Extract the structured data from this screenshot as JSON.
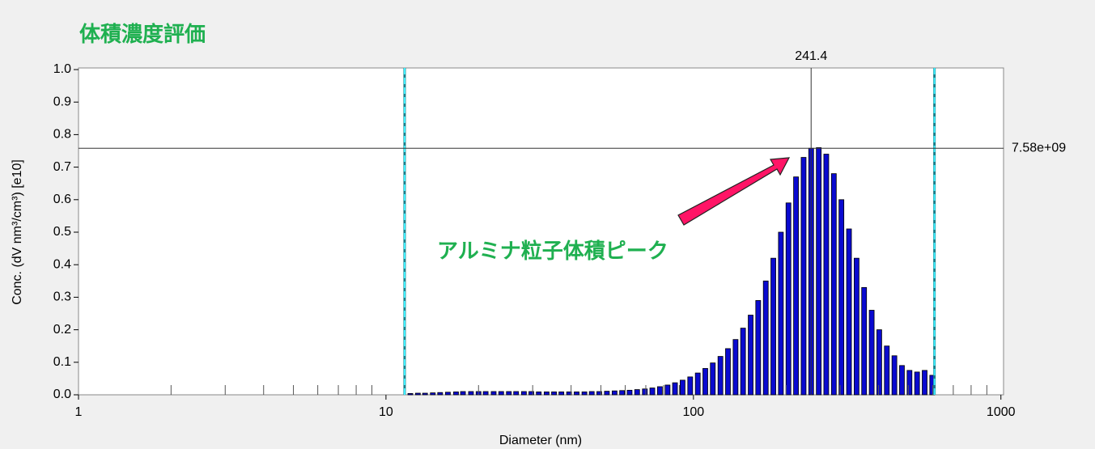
{
  "chart_data": {
    "type": "bar",
    "title": "体積濃度評価",
    "annotation": "アルミナ粒子体積ピーク",
    "xlabel": "Diameter (nm)",
    "ylabel": "Conc. (dV nm³/cm³) [e10]",
    "log_x": true,
    "color": "#0a0ad0",
    "x": [
      12.0,
      12.7,
      13.4,
      14.2,
      15.0,
      15.9,
      16.9,
      17.8,
      18.9,
      20.0,
      21.1,
      22.4,
      23.7,
      25.1,
      26.5,
      28.1,
      29.7,
      31.4,
      33.3,
      35.2,
      37.2,
      39.4,
      41.7,
      44.2,
      46.7,
      49.4,
      52.3,
      55.4,
      58.6,
      62.0,
      65.6,
      69.5,
      73.5,
      77.8,
      82.4,
      87.1,
      92.2,
      97.6,
      103.3,
      109.3,
      115.6,
      122.4,
      129.5,
      137.1,
      145.0,
      153.5,
      162.4,
      171.9,
      181.9,
      192.5,
      203.7,
      215.6,
      228.2,
      241.5,
      255.6,
      270.4,
      286.2,
      302.9,
      320.6,
      339.3,
      359.0,
      380.0,
      402.1,
      425.6,
      450.4,
      476.6,
      504.4,
      533.8,
      564.9,
      597.8
    ],
    "values": [
      0.004,
      0.005,
      0.005,
      0.006,
      0.007,
      0.008,
      0.009,
      0.01,
      0.01,
      0.01,
      0.01,
      0.01,
      0.01,
      0.01,
      0.01,
      0.01,
      0.01,
      0.009,
      0.009,
      0.009,
      0.009,
      0.009,
      0.009,
      0.009,
      0.01,
      0.01,
      0.011,
      0.012,
      0.013,
      0.014,
      0.016,
      0.018,
      0.021,
      0.025,
      0.03,
      0.037,
      0.045,
      0.055,
      0.067,
      0.081,
      0.098,
      0.118,
      0.142,
      0.17,
      0.205,
      0.245,
      0.29,
      0.35,
      0.42,
      0.5,
      0.59,
      0.67,
      0.73,
      0.758,
      0.76,
      0.74,
      0.68,
      0.6,
      0.51,
      0.42,
      0.33,
      0.26,
      0.2,
      0.15,
      0.12,
      0.09,
      0.075,
      0.07,
      0.075,
      0.06
    ],
    "xlim": [
      1,
      1020
    ],
    "xticks": [
      1,
      10,
      100,
      1000
    ],
    "xminor": [
      2,
      3,
      4,
      5,
      6,
      7,
      8,
      9,
      20,
      30,
      40,
      50,
      60,
      70,
      80,
      90,
      200,
      300,
      400,
      500,
      600,
      700,
      800,
      900
    ],
    "ylim": [
      0,
      1
    ],
    "yticks": [
      {
        "value": 0,
        "label": "0.0"
      },
      0.1,
      0.2,
      0.3,
      0.4,
      0.5,
      0.6,
      0.7,
      0.8,
      0.9,
      {
        "value": 1,
        "label": "1.0"
      }
    ],
    "cursors": [
      11.5,
      608
    ],
    "peak_x": 241.4,
    "peak_y": {
      "value": 0.758,
      "label": "7.58e+09"
    }
  }
}
